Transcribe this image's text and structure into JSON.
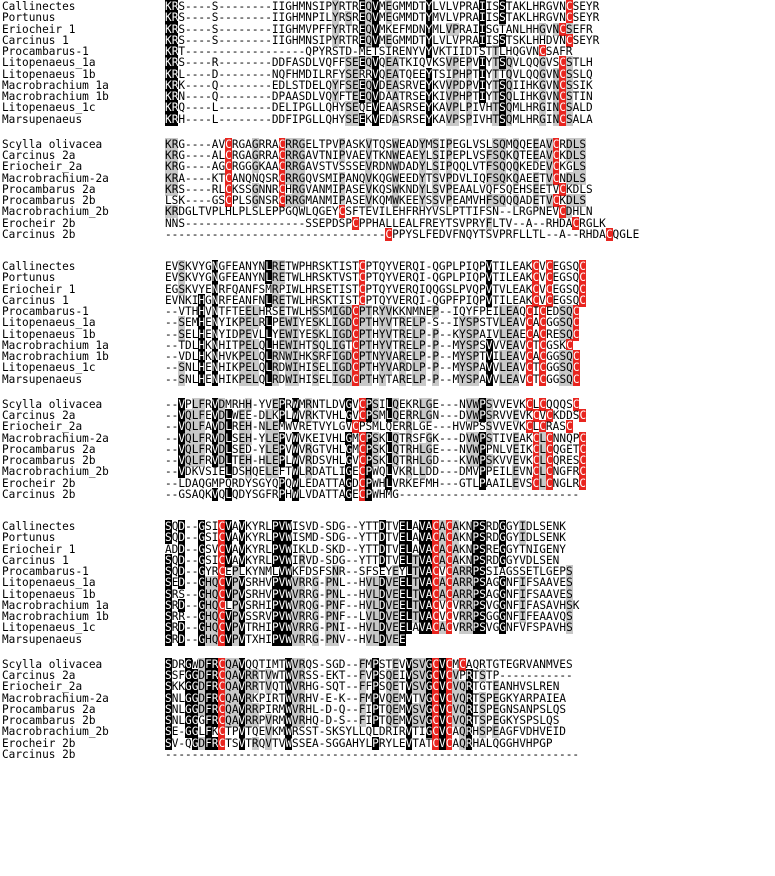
{
  "alignment": {
    "blocks": [
      {
        "groups": [
          {
            "rows": [
              {
                "name": "Callinectes",
                "seq": "KRS----S--------IIGHMNSIPYRTREQVMEGMMDTYLVLVPRAIISSTAKLHRGVNCSEYR"
              },
              {
                "name": "Portunus",
                "seq": "KRS----S--------IIGHMNPILYRSREQVMEGMMDTYMVLVPRAIISSTAKLHRGVNCSEYR"
              },
              {
                "name": "Eriocheir_1",
                "seq": "KRS----S--------IIGHMVPFFYRTREQVMKEFMDNYMLVPRAIISGTANLHHGVNCSEFR"
              },
              {
                "name": "Carcinus_1",
                "seq": "KRS----S--------IIGHMNSIPYRTREQVMEGMMDTYLVLVPRAIISSTSKLHHDVNCSEYR"
              },
              {
                "name": "Procambarus-1",
                "seq": "KRT------------------QPYRSTD-METSIRENYVYVKTIIDTSTTLHQGVNCSAFR"
              },
              {
                "name": "Litopenaeus_1a",
                "seq": "KRS----R--------DDFASDLVQFFSEEQVQEATKIQVKSVPEPVIYTSQVLQQGVSCSTLH"
              },
              {
                "name": "Litopenaeus_1b",
                "seq": "KRL----D--------NQFHMDILRFYSERRVQEATQEEYTSIPHPTIYTTQVLQQGVNCSSLQ"
              },
              {
                "name": "Macrobrachium_1a",
                "seq": "KRK----Q--------EDLSTDELQYFSEEQVDEASRVEYKVVPDPVIYTSQIIHKGVNCSSIK"
              },
              {
                "name": "Macrobrachium_1b",
                "seq": "KRN----Q--------DPAASDLVQYFTEEQVDAATRSEYKIVPHPTIYTSQLIHKGVNCSTIN"
              },
              {
                "name": "Litopenaeus_1c",
                "seq": "KRQ----L--------DELIPGLLQHYSEQEVEAASRSEYKAVPLPIVHTSQMLHRGINCSALD"
              },
              {
                "name": "Marsupenaeus",
                "seq": "KRH----L--------DDFIPGLLQHYSEEKVEDASRSEYKAVPSPIVHTSQMLHRGINCSALA"
              }
            ]
          },
          {
            "rows": [
              {
                "name": "Scylla_olivacea",
                "seq": "KRG----AVCRGAGRRACRRGELTPVPASKVTQSWEADYMSIPEGLVSLSQMQQEEAVCRDLS"
              },
              {
                "name": "Carcinus_2a",
                "seq": "KRG----ALCRGAGRRACRRGAVTNIPVAEVTKNWEAEYLSIPEPLVSFSQKQTEEAVCKDLS"
              },
              {
                "name": "Eriocheir_2a",
                "seq": "KRG----AGCRGGGKAACRRGAVSTVSSSEVRDNWDADYLSIPQQLVTFSQQQKEDEVCKGLS"
              },
              {
                "name": "Macrobrachium-2a",
                "seq": "KRA----KTCANQNQSRCRRGQVSMIPANQVKQGWEEDYTSVPDVLIQFSQKQAEETVCNDLS"
              },
              {
                "name": "Procambarus_2a",
                "seq": "KRS----RLCKSSGNNRCHRGVANMIPASEVKQSWKNDYLSVPEAALVQFSQEHSEETVCKDLS"
              },
              {
                "name": "Procambarus_2b",
                "seq": "LSK----GSCPLSGNSRCRRGMANMIPASEVKQMWKEEYSSVPEAMVHFSQQQADETVCKDLS"
              },
              {
                "name": "Macrobrachium_2b",
                "seq": "KRDGLTVPLHLPLSLEPPGQWLQGEYCSFTEVILEHFRHYVSLPTTIFSN--LRGPNEVCDHLN"
              },
              {
                "name": "Erocheir_2b",
                "seq": "NNS------------------SSEPDSPCPPHALLEALFREYTSVPRYFLTV--A--RHDACRGLK"
              },
              {
                "name": "Carcinus_2b",
                "seq": "---------------------------------CPPYSLFEDVFNQYTSVPRFLLTL--A--RHDACQGLE"
              }
            ]
          }
        ]
      },
      {
        "groups": [
          {
            "rows": [
              {
                "name": "Callinectes",
                "seq": "EVSKVYGNGFEANYNLRETWPHRSKTISTCPTQYVERQI-QGPLPIQPVTILEAKCVCEGSQC"
              },
              {
                "name": "Portunus",
                "seq": "EVSKVYGNGFEANYNLRETWLHRSKTVSTCPTQYVERQI-QGPLPIQPVTILEAKCVCEGSQC"
              },
              {
                "name": "Eriocheir_1",
                "seq": "EGSKVYENRFQANFSMRPIWLHRSETISTCPTQYVERQIQQGSLPVQPVTVLEAKCVCEGSQC"
              },
              {
                "name": "Carcinus_1",
                "seq": "EVNKIHGNRFEANFNLRETWLHRSKTISTCPTQYVERQI-QGPFPIQPVTILEAKCVCEGSQC"
              },
              {
                "name": "Procambarus-1",
                "seq": "--VTHHVNTFTEELHRSETWLHSSMIGDCPTRYVKKNMNEP--IQYFPEILEAQCICEDSQC"
              },
              {
                "name": "Litopenaeus_1a",
                "seq": "--SEMHENYIKPELRLPEWIYESKLIGDCPTHYVTRELP-S--IYSPSTVLEAVCACGGSQC"
              },
              {
                "name": "Litopenaeus_1b",
                "seq": "--SELHENYIDPEVLLYEWIYESKLIGDCPTHYVTRELP-P--KYSPAIVLEAECACRESQC"
              },
              {
                "name": "Macrobrachium_1a",
                "seq": "--TDLHKNHITPELQLHEWIHTSQLIGTCPTHYVTRELP-P--MYSPSVVVEAVCTCGSKC"
              },
              {
                "name": "Macrobrachium_1b",
                "seq": "--VDLHKNHVKPELQLRNWIHKSRFIGDCPTNYVARELP-P--MYSPTVILEAVCACGGSQC"
              },
              {
                "name": "Litopenaeus_1c",
                "seq": "--SNLHENHIKPELQLRDWIHISELIGDCPTHYVARDLP-P--MYSPAVVLEAVCTCGGSQC"
              },
              {
                "name": "Marsupenaeus",
                "seq": "--SNLHENHIKPELQLRDWIHISELIGDCPTHYTARELP-P--MYSPAVVLEAVCTCGGSQC"
              }
            ]
          },
          {
            "rows": [
              {
                "name": "Scylla_olivacea",
                "seq": "--VPLFRVDMRHH-YVEPRWMRNTLDVGVCPSILQEKRLGE---NVWPSVVEVKCLCQQQSC"
              },
              {
                "name": "Carcinus_2a",
                "seq": "--VQLFEVDLWEE-DLKPLWVRKTVHLGVCPSMLQERRLGN---DVWPSRVVEVKCVCKDDSC"
              },
              {
                "name": "Eriocheir_2a",
                "seq": "--VQLFAVDLREH-NLEMWVRETVYLGVCPSMLQERRLGE---HVWPSSVVEVKCLCRASC"
              },
              {
                "name": "Macrobrachium-2a",
                "seq": "--VQLFRVDLSEH-YLEPVWVKEIVHLGMCPSKLQTRSFGK---DVWPSTIVEAKCLCNNQPC"
              },
              {
                "name": "Procambarus_2a",
                "seq": "--VQLFRVDLSED-YLEPVWVRGTVHLGMCPSKLQTRHLGE---NVWPPNLVEIKCLCQGETC"
              },
              {
                "name": "Procambarus_2b",
                "seq": "--VQLFRVDLTEH-HLEPLWVRDSVHLGVCPSKLQTRHLGD---KVWPSKVVEVKCLCQRESC"
              },
              {
                "name": "Macrobrachium_2b",
                "seq": "--VDKVSIELDSHQELEFTWLRDATLIGECPWQLVKRLLDD---DMVPPEILEVNCLCNGFRC"
              },
              {
                "name": "Erocheir_2b",
                "seq": "--LDAQGMPQRDYSGYQPQWLEDATTAGDCPWHLVRKEFMH---GTLPAAILEVSCLCNGLRC"
              },
              {
                "name": "Carcinus_2b",
                "seq": "--GSAQKVQLQDYSGFRPHWLVDATTAGECPWHMG---------------------------"
              }
            ]
          }
        ]
      },
      {
        "groups": [
          {
            "rows": [
              {
                "name": "Callinectes",
                "seq": "SQD--GSICVAVKYRLPVWISVD-SDG--YTTDTVELAVACACAKNPSRDGGYIDLSENK"
              },
              {
                "name": "Portunus",
                "seq": "SQD--GSICVAVKYRLPVWISMD-SDG--YTTDTVELAVACACAKNPSRDGGYIDLSENK"
              },
              {
                "name": "Eriocheir_1",
                "seq": "ADD--GSVCVAVKYRLPVWIKLD-SKD--YTTDTVELAVACACAKNPSREGGYTNIGENY"
              },
              {
                "name": "Carcinus_1",
                "seq": "SQD--GSICVAVKYRLPVWIRVD-SDG--YTTDTVELTVACACAKNPSRDGGYVDLSEN"
              },
              {
                "name": "Procambarus-1",
                "seq": "SQD--GYRCEPLKYNMLVWKFDSFSNR--SFSEYEYLTVACVCARRPSSIAGSSETLGEPS"
              },
              {
                "name": "Litopenaeus_1a",
                "seq": "SED--GHQCVPVSRHVPVWVRRG-PNL--HVLDVEELTVACACARRPSAGGNFIFSAAVES"
              },
              {
                "name": "Litopenaeus_1b",
                "seq": "SRS--GHQCVPVSRHVPVWVRRG-PNL--HVLDVEELTVACACARRPSAGGNFIFSAAVES"
              },
              {
                "name": "Macrobrachium_1a",
                "seq": "SRD--GHQCLPVSRHIPVWVRQG-PNF--HVLDVEELTVACVCVRRPSVGGNFIFASAVHSK"
              },
              {
                "name": "Macrobrachium_1b",
                "seq": "SRR--GHQCVPVSSRVPVWVRRG-PNF--LVLDVEELTVACVCVRRPSGGGNFIFEAAVQS"
              },
              {
                "name": "Litopenaeus_1c",
                "seq": "SRD--GHQCVPVTRHIPVWVRRG-PNI--HVLDVEELAVACACVRRPSVGGNFVFSPAVHS"
              },
              {
                "name": "Marsupenaeus",
                "seq": "SRD--GHQCVPVTXHIPVWVRRG-PNV--HVLDVEE"
              }
            ]
          },
          {
            "rows": [
              {
                "name": "Scylla_olivacea",
                "seq": "SDRGWDFRCQAVQQTIMTWVRQS-SGD--FMPSTEVVSVGCVCMCAQRTGTEGRVANMVES"
              },
              {
                "name": "Carcinus_2a",
                "seq": "SSFGGDFRCQAVRRTVWTWVRSS-EKT--FVPSQEIVSVGCVCVPRTSTP-----------"
              },
              {
                "name": "Eriocheir_2a",
                "seq": "SKKGGDFRCQAVRRTVQTWVRHG-SQT--FFPSQETVSVGCVCVQRTGTEANHVSLREN"
              },
              {
                "name": "Macrobrachium-2a",
                "seq": "SNLGGDFRCQAVRKPIRTWVRHV-E-K--FMPVQEMVTVGCVCVQRTSPEGKYARPAIEA"
              },
              {
                "name": "Procambarus_2a",
                "seq": "SNLGGDFRCQAVRRPIRMWVRHL-D-Q--FIPTQEMVSVGCVCVQRISPEGNSANPSLQS"
              },
              {
                "name": "Procambarus_2b",
                "seq": "SNLGGGFRCQAVRRPVRMWVRHQ-D-S--FIPTQEMVSVGCVCVQRTSPEGKYSPSLQS"
              },
              {
                "name": "Macrobrachium_2b",
                "seq": "SE-GGLFKCTPVTQEVKMWRSST-SKSYLLQLDRIRVTIGCVCAQRHSPEAGFVDHVEID"
              },
              {
                "name": "Erocheir_2b",
                "seq": "SV-QGDFRCTSVTRQVTVWSSEA-SGGAHYLPRYLEVTATCVCAQRHALQGGHVHPGP"
              },
              {
                "name": "Carcinus_2b",
                "seq": "--------------------------------------------------------------"
              }
            ]
          }
        ]
      }
    ]
  }
}
